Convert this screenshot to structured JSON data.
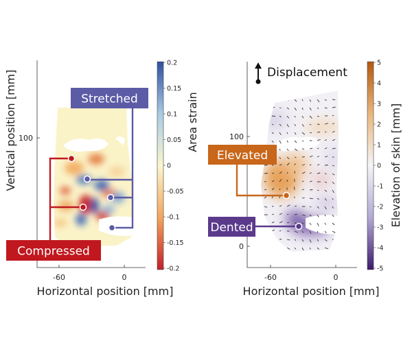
{
  "chart_data": [
    {
      "type": "heatmap",
      "x_ticks": [
        -60,
        0
      ],
      "y_ticks": [
        100
      ],
      "xlabel": "Horizontal position [mm]",
      "ylabel": "Vertical position [mm]",
      "colorbar": {
        "label": "Area strain",
        "range": [
          -0.2,
          0.2
        ],
        "ticks": [
          "0.2",
          "0.15",
          "0.1",
          "0.05",
          "0",
          "-0.05",
          "-0.1",
          "-0.15",
          "-0.2"
        ],
        "colors": {
          "high": "#2f4f9e",
          "mid": "#fbf6cf",
          "low": "#c3202b"
        }
      },
      "annotations": [
        {
          "text": "Stretched",
          "color": "#5c5ba6"
        },
        {
          "text": "Compressed",
          "color": "#c0181e"
        }
      ]
    },
    {
      "type": "heatmap",
      "x_ticks": [
        -60,
        0
      ],
      "y_ticks": [
        100,
        0
      ],
      "xlabel": "Horizontal position [mm]",
      "ylabel": "",
      "colorbar": {
        "label": "Elevation of skin [mm]",
        "range": [
          -5,
          5
        ],
        "ticks": [
          "5",
          "4",
          "3",
          "2",
          "1",
          "0",
          "-1",
          "-2",
          "-3",
          "-4",
          "-5"
        ],
        "colors": {
          "high": "#b3580f",
          "mid": "#f5f4f7",
          "low": "#3d1a6e"
        }
      },
      "legend": {
        "arrow_label": "Displacement"
      },
      "annotations": [
        {
          "text": "Elevated",
          "color": "#c8661a"
        },
        {
          "text": "Dented",
          "color": "#5b3a8c"
        }
      ]
    }
  ]
}
